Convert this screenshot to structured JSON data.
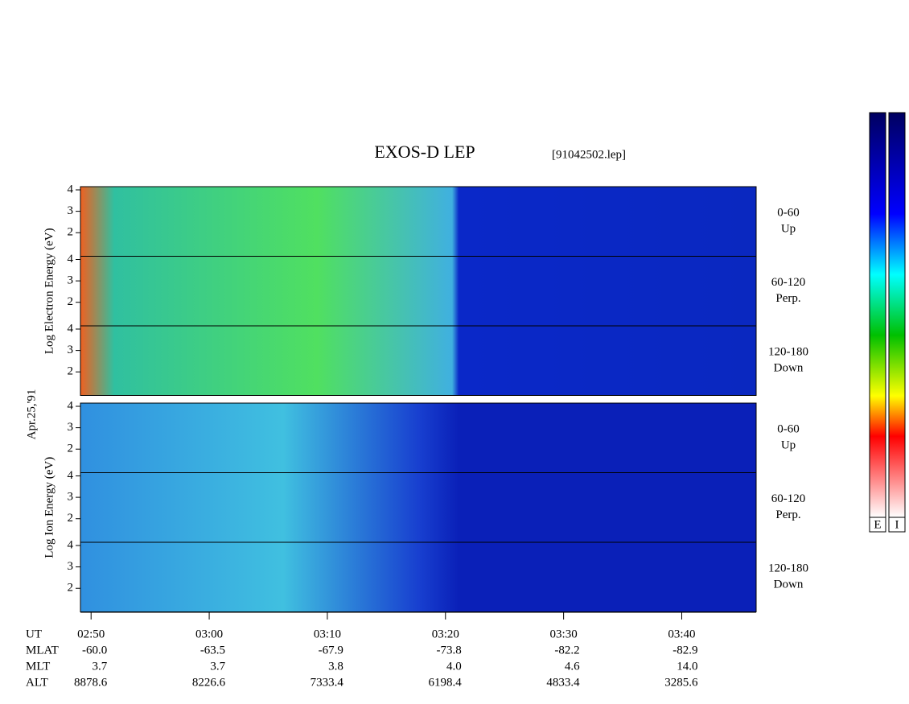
{
  "chart_data": {
    "type": "spectrogram",
    "title": "EXOS-D LEP",
    "file_label": "[91042502.lep]",
    "date_label": "Apr.25,'91",
    "groups": [
      {
        "ylabel": "Log Electron Energy (eV)",
        "colorbar_label": "E",
        "panels": [
          {
            "range": "0-60",
            "direction": "Up"
          },
          {
            "range": "60-120",
            "direction": "Perp."
          },
          {
            "range": "120-180",
            "direction": "Down"
          }
        ]
      },
      {
        "ylabel": "Log Ion Energy (eV)",
        "colorbar_label": "I",
        "panels": [
          {
            "range": "0-60",
            "direction": "Up"
          },
          {
            "range": "60-120",
            "direction": "Perp."
          },
          {
            "range": "120-180",
            "direction": "Down"
          }
        ]
      }
    ],
    "ylim": [
      0.9,
      4.15
    ],
    "yticks": [
      2,
      3,
      4
    ],
    "xlim": [
      169.1,
      226.3
    ],
    "xticks": [
      {
        "value": 170,
        "label": "02:50"
      },
      {
        "value": 180,
        "label": "03:00"
      },
      {
        "value": 190,
        "label": "03:10"
      },
      {
        "value": 200,
        "label": "03:20"
      },
      {
        "value": 210,
        "label": "03:30"
      },
      {
        "value": 220,
        "label": "03:40"
      }
    ],
    "ephemeris": [
      {
        "name": "UT"
      },
      {
        "name": "MLAT",
        "values": [
          "-60.0",
          "-63.5",
          "-67.9",
          "-73.8",
          "-82.2",
          "-82.9"
        ]
      },
      {
        "name": "MLT",
        "values": [
          "3.7",
          "3.7",
          "3.8",
          "4.0",
          "4.6",
          "14.0"
        ]
      },
      {
        "name": "ALT",
        "values": [
          "8878.6",
          "8226.6",
          "7333.4",
          "6198.4",
          "4833.4",
          "3285.6"
        ]
      }
    ]
  }
}
